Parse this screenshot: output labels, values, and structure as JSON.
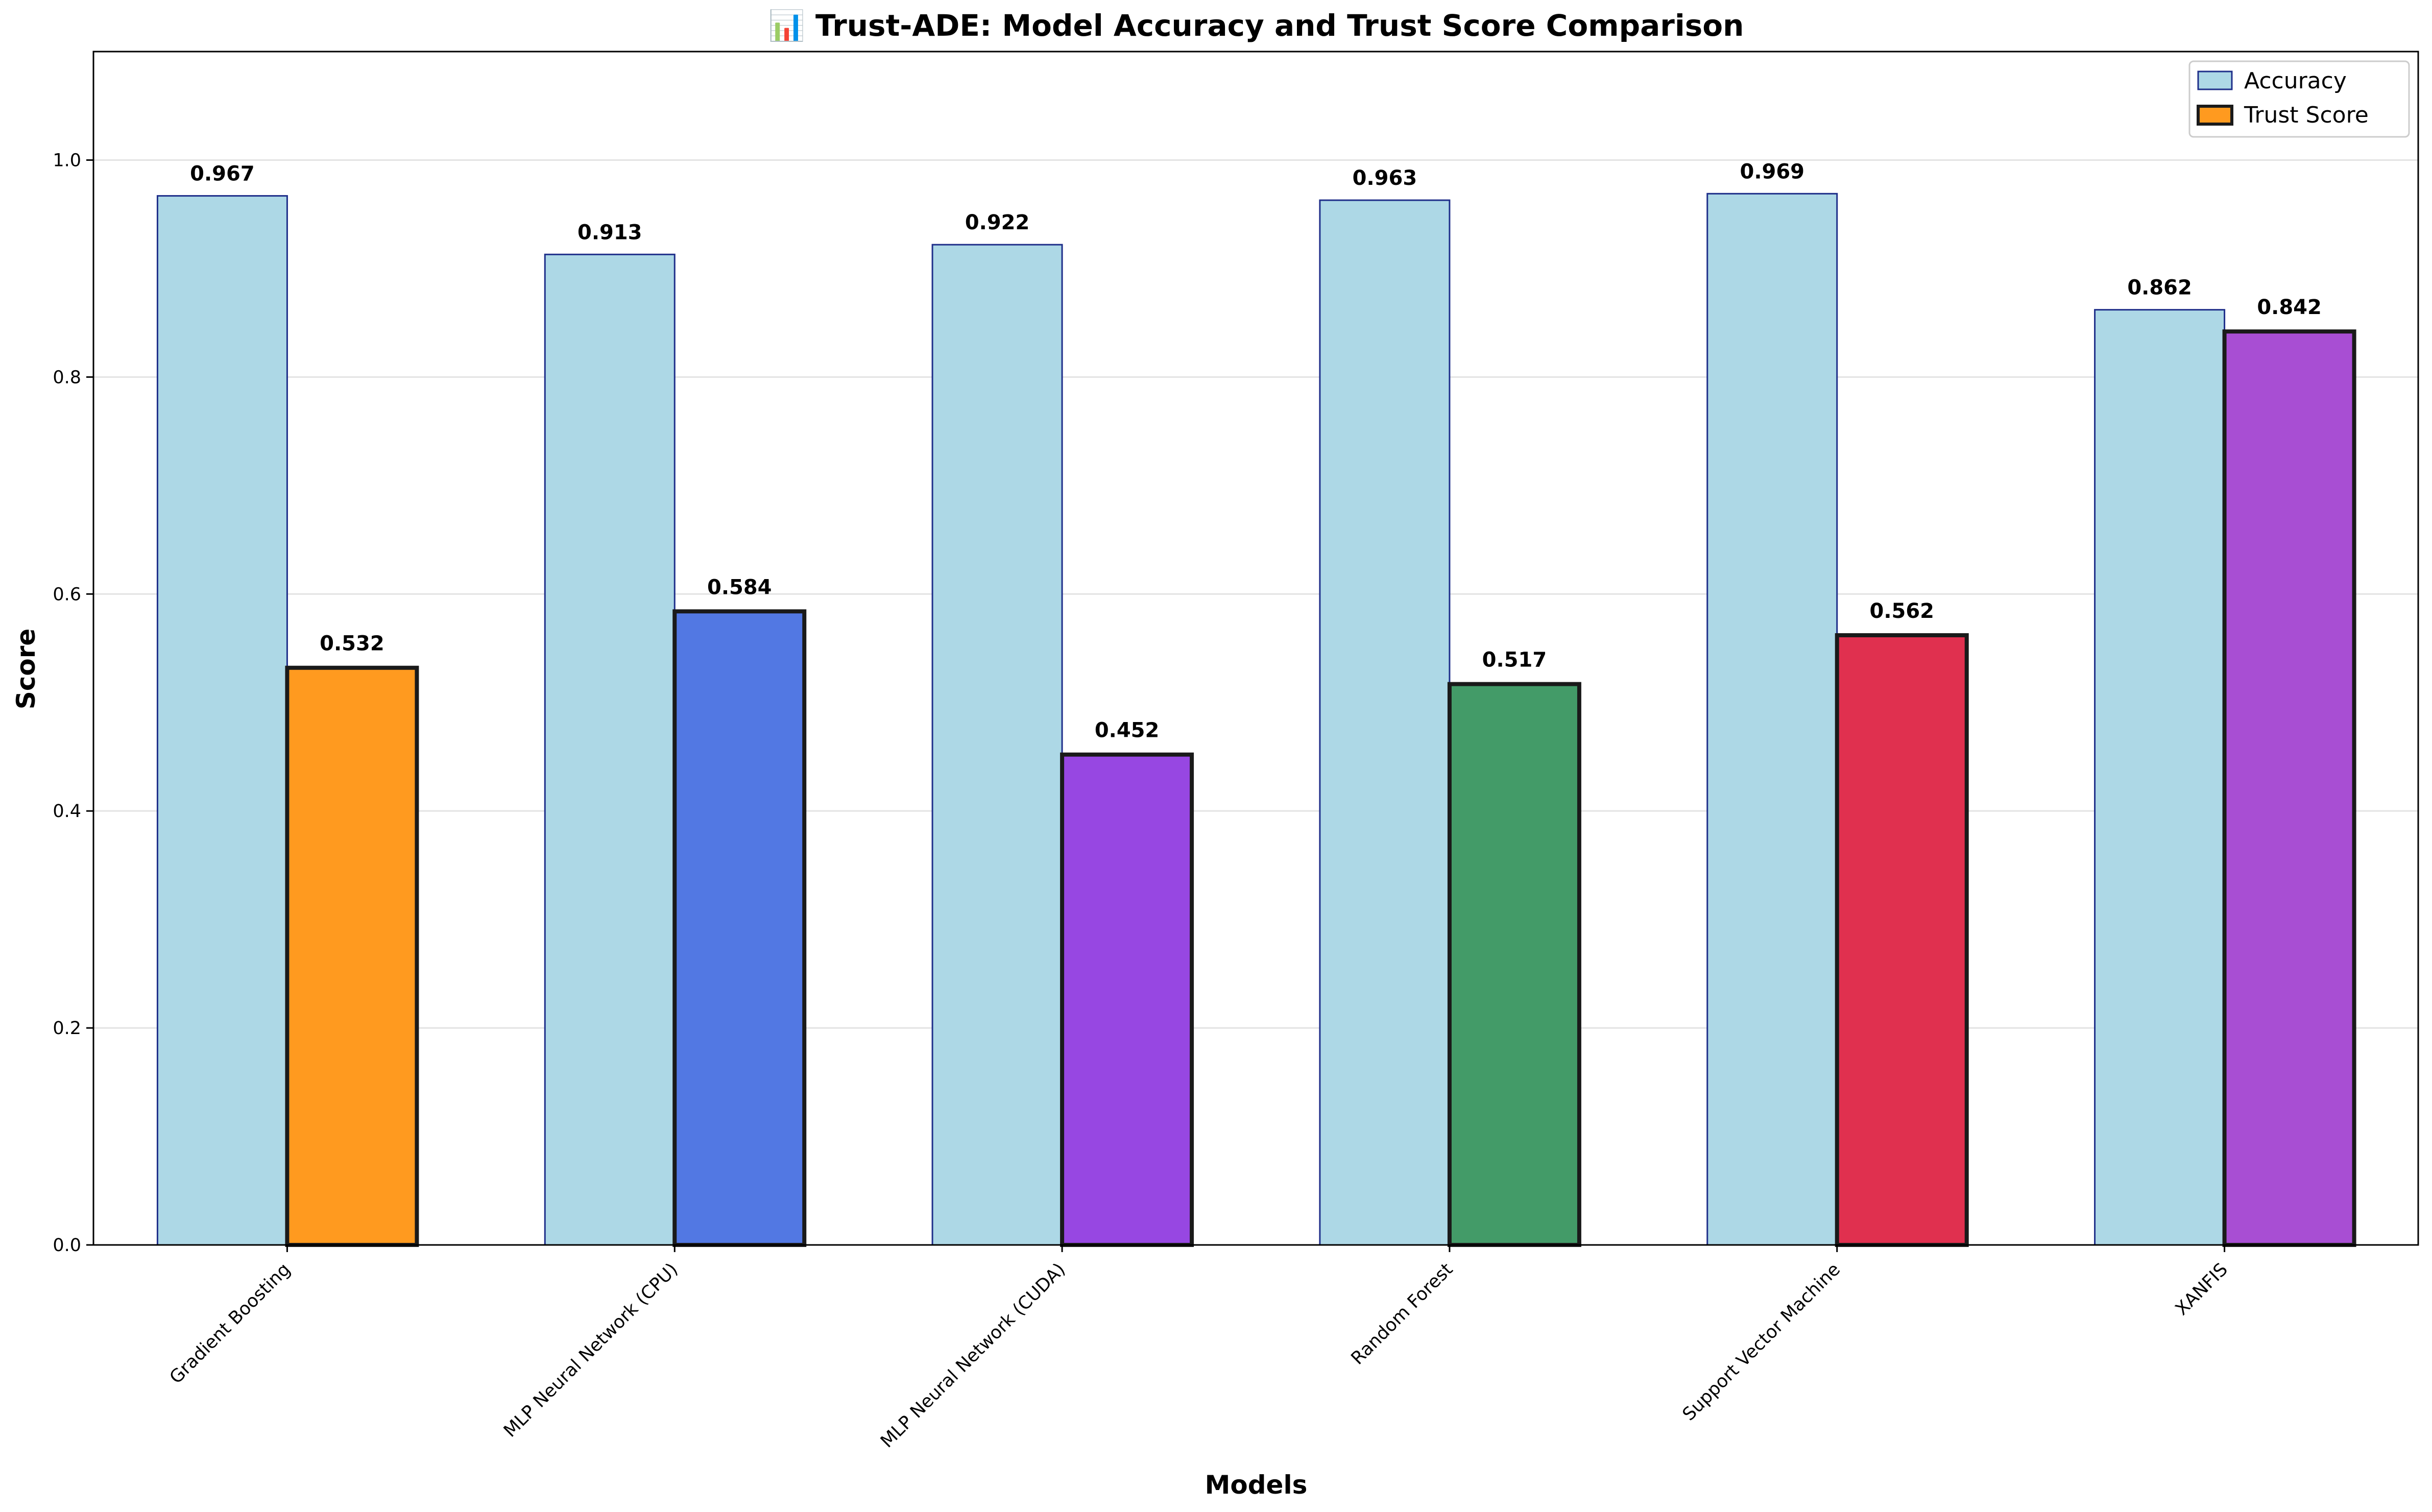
{
  "chart_data": {
    "type": "bar",
    "title": "📊 Trust-ADE: Model Accuracy and Trust Score Comparison",
    "xlabel": "Models",
    "ylabel": "Score",
    "ylim": [
      0,
      1.1
    ],
    "yticks": [
      "0.0",
      "0.2",
      "0.4",
      "0.6",
      "0.8",
      "1.0"
    ],
    "grid": true,
    "legend_position": "top-right",
    "categories": [
      "Gradient Boosting",
      "MLP Neural Network (CPU)",
      "MLP Neural Network (CUDA)",
      "Random Forest",
      "Support Vector Machine",
      "XANFIS"
    ],
    "series": [
      {
        "name": "Accuracy",
        "values": [
          0.967,
          0.913,
          0.922,
          0.963,
          0.969,
          0.862
        ],
        "labels": [
          "0.967",
          "0.913",
          "0.922",
          "0.963",
          "0.969",
          "0.862"
        ],
        "color": "#add8e6",
        "edge_color": "#1f2f8a"
      },
      {
        "name": "Trust Score",
        "values": [
          0.532,
          0.584,
          0.452,
          0.517,
          0.562,
          0.842
        ],
        "labels": [
          "0.532",
          "0.584",
          "0.452",
          "0.517",
          "0.562",
          "0.842"
        ],
        "colors": [
          "#ff9a1f",
          "#5278e3",
          "#9747e2",
          "#439b68",
          "#e0304f",
          "#a84ed3"
        ],
        "legend_color": "#ff9a1f",
        "edge_color": "#1a1a1a"
      }
    ]
  }
}
